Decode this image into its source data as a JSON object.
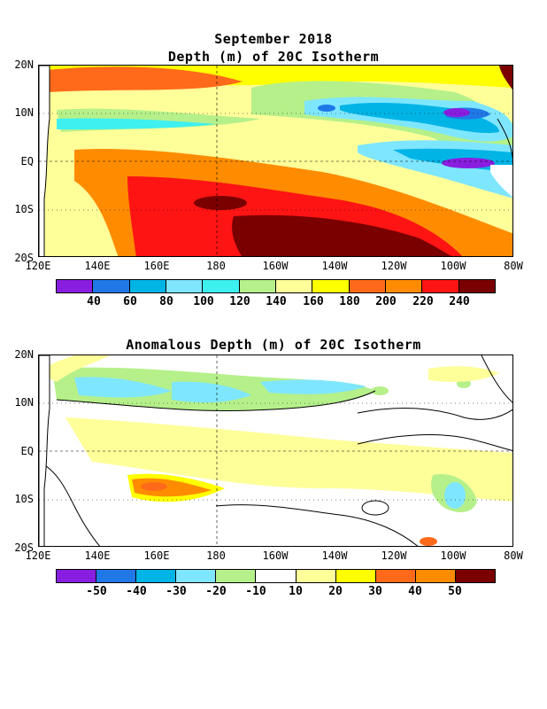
{
  "page_title": "September 2018",
  "panels": [
    {
      "title": "Depth (m) of 20C Isotherm",
      "lat_labels": [
        "20N",
        "10N",
        "EQ",
        "10S",
        "20S"
      ],
      "lon_labels": [
        "120E",
        "140E",
        "160E",
        "180",
        "160W",
        "140W",
        "120W",
        "100W",
        "80W"
      ],
      "colorbar_labels": [
        "40",
        "60",
        "80",
        "100",
        "120",
        "140",
        "160",
        "180",
        "200",
        "220",
        "240"
      ],
      "colorbar_colors": [
        "#8a1ee0",
        "#1f78e6",
        "#00b4e6",
        "#7fe6ff",
        "#3ff0f0",
        "#b5f08a",
        "#ffff9a",
        "#ffff00",
        "#ff6a1a",
        "#ff8c00",
        "#ff1414",
        "#7a0000"
      ]
    },
    {
      "title": "Anomalous Depth (m) of 20C Isotherm",
      "lat_labels": [
        "20N",
        "10N",
        "EQ",
        "10S",
        "20S"
      ],
      "lon_labels": [
        "120E",
        "140E",
        "160E",
        "180",
        "160W",
        "140W",
        "120W",
        "100W",
        "80W"
      ],
      "colorbar_labels": [
        "-50",
        "-40",
        "-30",
        "-20",
        "-10",
        "10",
        "20",
        "30",
        "40",
        "50"
      ],
      "colorbar_colors": [
        "#8a1ee0",
        "#1f78e6",
        "#00b4e6",
        "#7fe6ff",
        "#b5f08a",
        "#ffffff",
        "#ffff9a",
        "#ffff00",
        "#ff6a1a",
        "#ff8c00",
        "#7a0000"
      ]
    }
  ]
}
